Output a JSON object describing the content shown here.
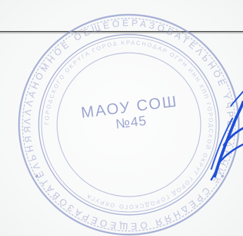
{
  "stamp": {
    "organization": "МАОУ СОШ",
    "number": "№45",
    "ring_color": "#8e99c9",
    "ink_color": "#1f4fd8"
  }
}
